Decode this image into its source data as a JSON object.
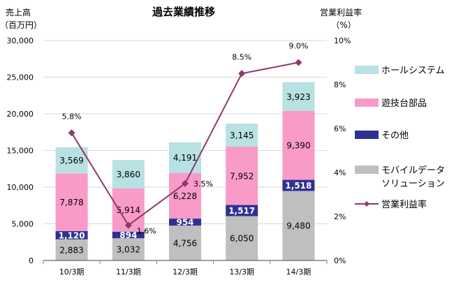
{
  "chart_data": {
    "type": "bar",
    "title": "過去業績推移",
    "ylabel": [
      "売上高",
      "（百万円）"
    ],
    "y2label": [
      "営業利益率",
      "（%）"
    ],
    "ylim": [
      0,
      30000
    ],
    "y2lim": [
      0,
      10
    ],
    "yticks": [
      "0",
      "5,000",
      "10,000",
      "15,000",
      "20,000",
      "25,000",
      "30,000"
    ],
    "y2ticks": [
      "0%",
      "2%",
      "4%",
      "6%",
      "8%",
      "10%"
    ],
    "categories": [
      "10/3期",
      "11/3期",
      "12/3期",
      "13/3期",
      "14/3期"
    ],
    "series": [
      {
        "name": "モバイルデータソリューション",
        "legend": [
          "モバイルデータ",
          "ソリューション"
        ],
        "color": "#bfbfbf",
        "values": [
          2883,
          3032,
          4756,
          6050,
          9480
        ],
        "labels": [
          "2,883",
          "3,032",
          "4,756",
          "6,050",
          "9,480"
        ],
        "label_color": "#000000"
      },
      {
        "name": "その他",
        "legend": [
          "その他"
        ],
        "color": "#2e3192",
        "values": [
          1120,
          894,
          954,
          1517,
          1518
        ],
        "labels": [
          "1,120",
          "894",
          "954",
          "1,517",
          "1,518"
        ],
        "label_color": "#ffffff"
      },
      {
        "name": "遊技台部品",
        "legend": [
          "遊技台部品"
        ],
        "color": "#f99bc8",
        "values": [
          7878,
          5914,
          6228,
          7952,
          9390
        ],
        "labels": [
          "7,878",
          "5,914",
          "6,228",
          "7,952",
          "9,390"
        ],
        "label_color": "#000000"
      },
      {
        "name": "ホールシステム",
        "legend": [
          "ホールシステム"
        ],
        "color": "#b7e1e3",
        "values": [
          3569,
          3860,
          4191,
          3145,
          3923
        ],
        "labels": [
          "3,569",
          "3,860",
          "4,191",
          "3,145",
          "3,923"
        ],
        "label_color": "#000000"
      }
    ],
    "line": {
      "name": "営業利益率",
      "color": "#8b3a6b",
      "values": [
        5.8,
        1.6,
        3.5,
        8.5,
        9.0
      ],
      "labels": [
        "5.8%",
        "1.6%",
        "3.5%",
        "8.5%",
        "9.0%"
      ]
    },
    "legend_order": [
      "ホールシステム",
      "遊技台部品",
      "その他",
      "モバイルデータソリューション",
      "営業利益率"
    ],
    "legend_position": "right",
    "grid": true
  }
}
